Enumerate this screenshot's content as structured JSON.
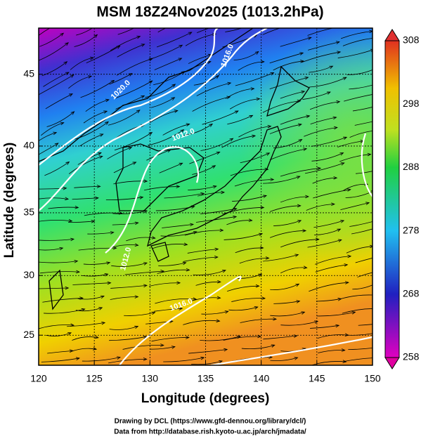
{
  "chart_data": {
    "type": "map",
    "title": "MSM 18Z24Nov2025 (1013.2hPa)",
    "x_label": "Longitude (degrees)",
    "y_label": "Latitude  (degrees)",
    "xlim": [
      120,
      150
    ],
    "xticks": [
      120,
      125,
      130,
      135,
      140,
      145,
      150
    ],
    "ylim": [
      22.4,
      48
    ],
    "yticks": [
      25,
      30,
      35,
      40,
      45
    ],
    "projection": "mercator",
    "grid": true,
    "colorbar": {
      "lim": [
        258,
        308
      ],
      "ticks": [
        258,
        268,
        278,
        288,
        298,
        308
      ]
    },
    "contour_labels": [
      "1020.0",
      "1016.0",
      "1012.0",
      "1016.0",
      "1012.0"
    ],
    "credits": [
      "Drawing by DCL (https://www.gfd-dennou.org/library/dcl/)",
      "Data from http://database.rish.kyoto-u.ac.jp/arch/jmadata/"
    ]
  }
}
